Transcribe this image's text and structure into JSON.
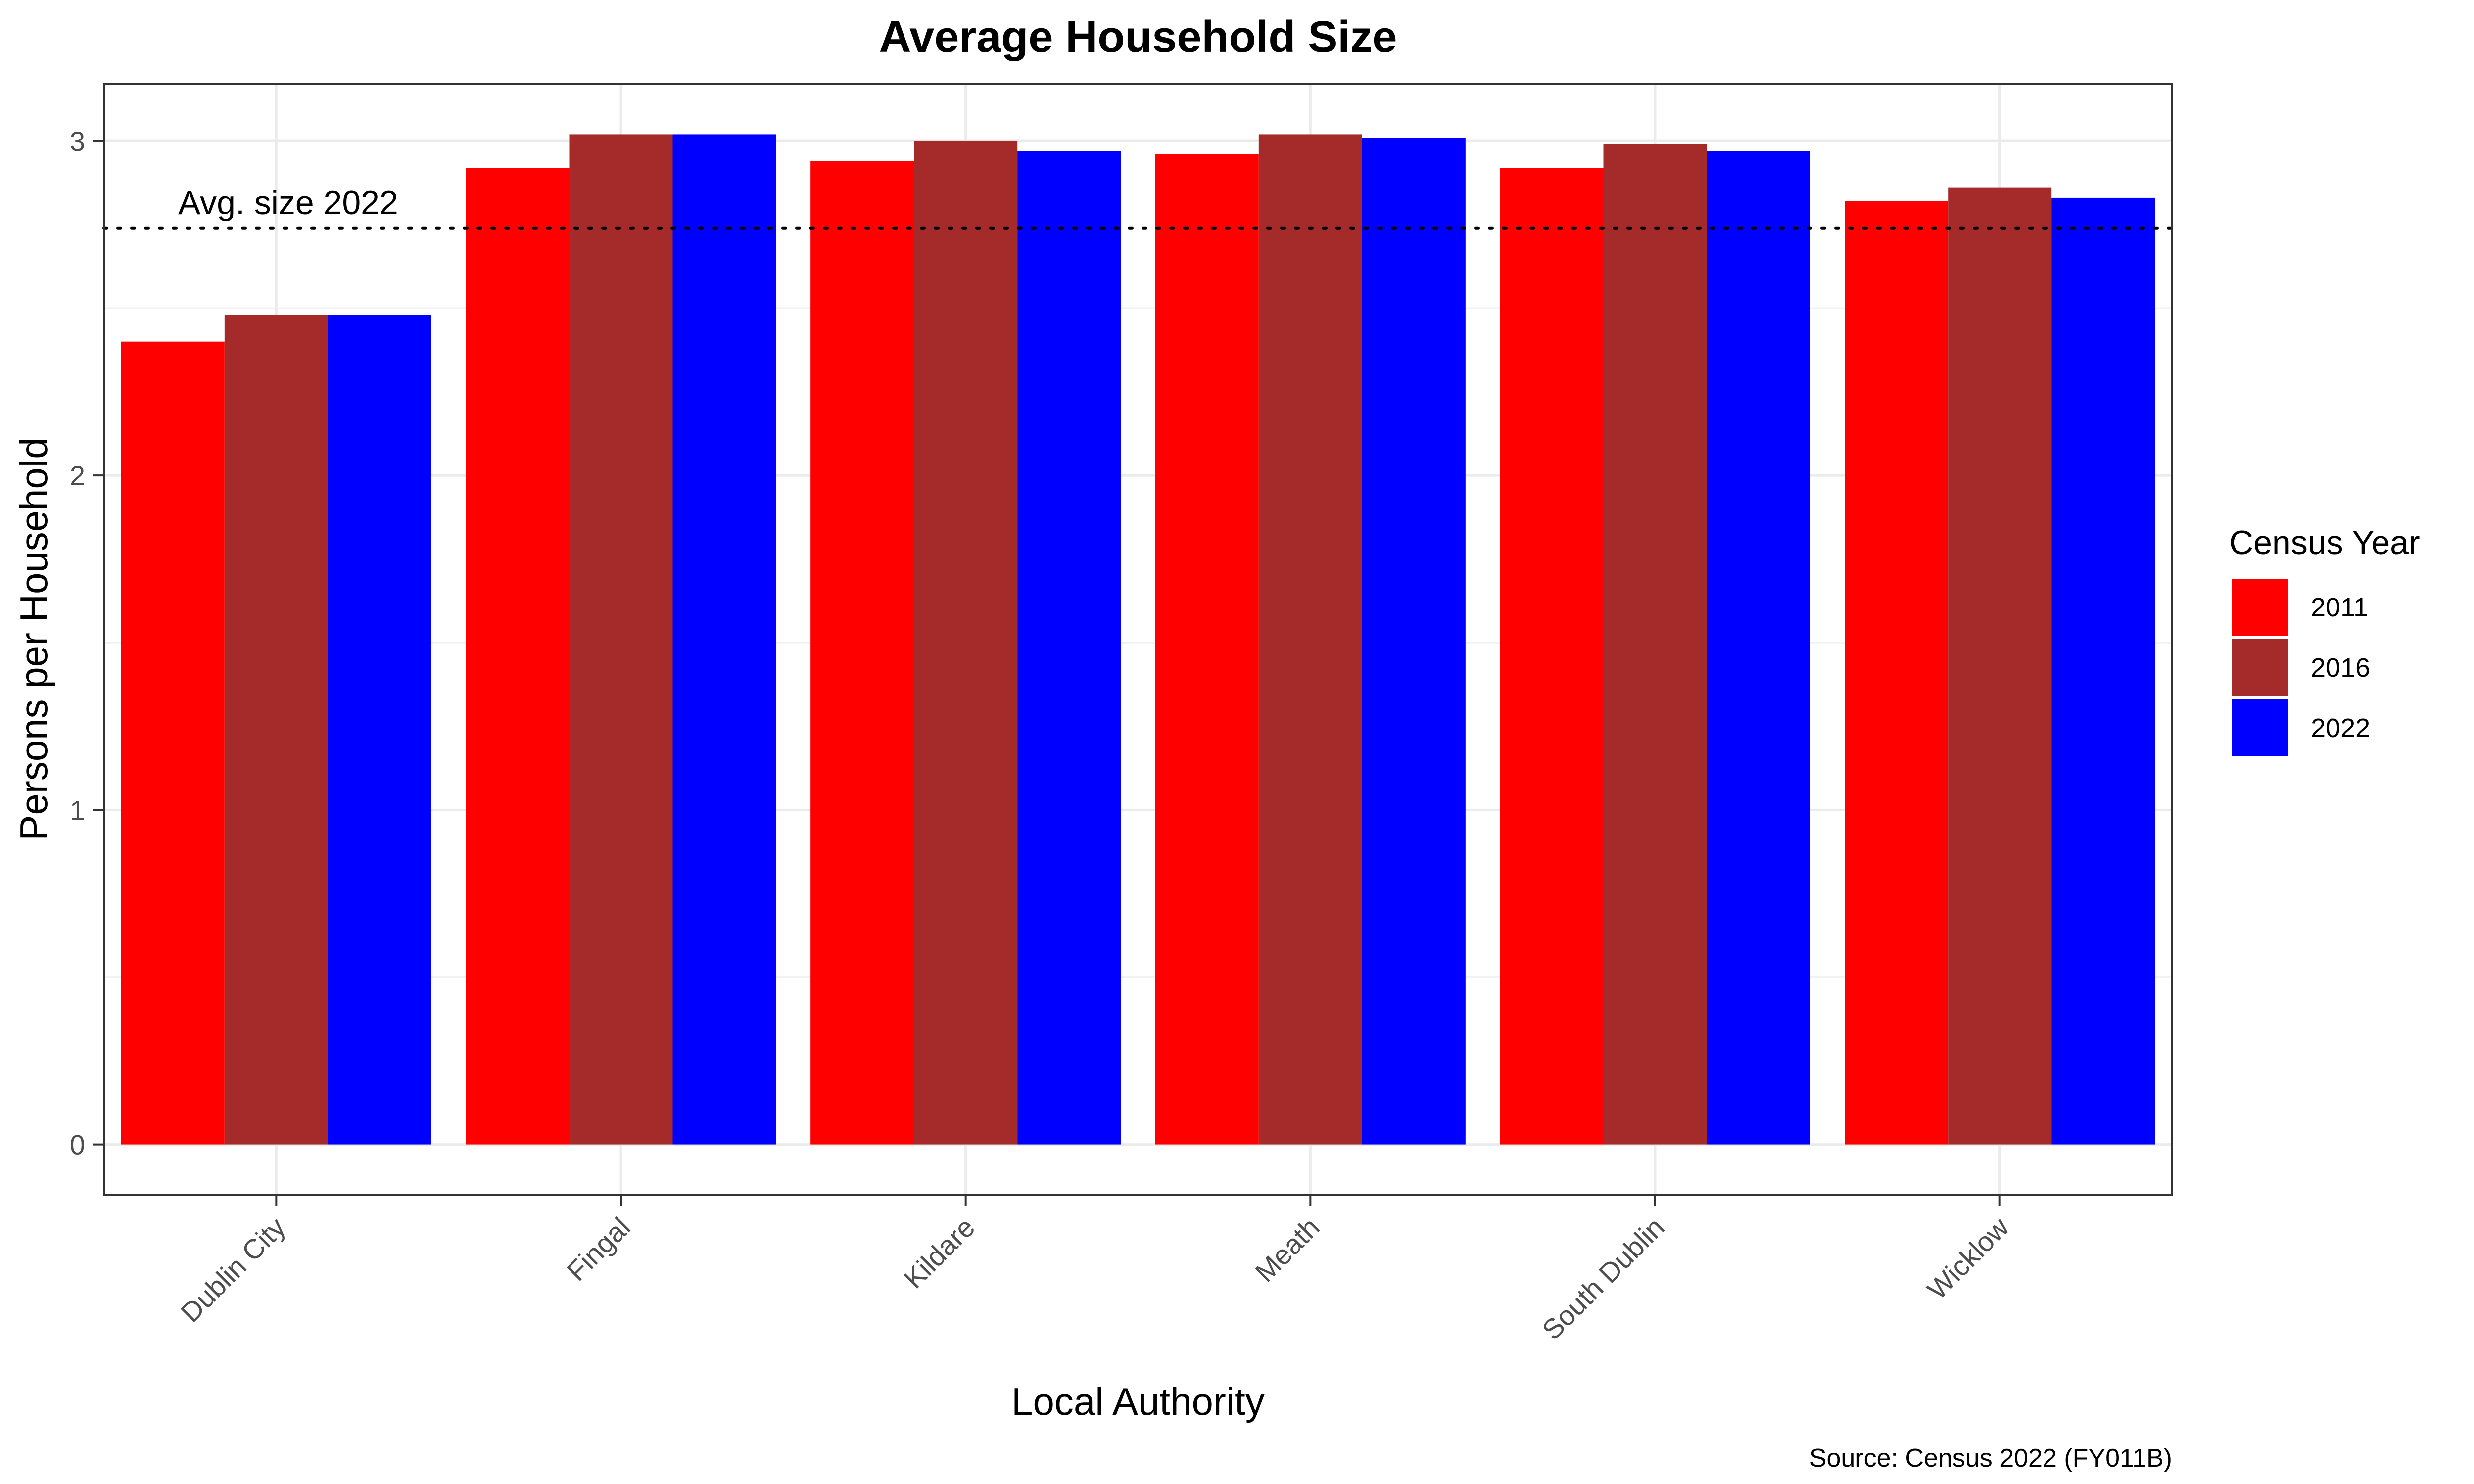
{
  "chart_data": {
    "type": "bar",
    "title": "Average Household Size",
    "xlabel": "Local Authority",
    "ylabel": "Persons per Household",
    "caption": "Source: Census 2022 (FY011B)",
    "legend_title": "Census Year",
    "legend_position": "right",
    "grid": true,
    "ylim": [
      -0.15,
      3.17
    ],
    "yticks": [
      0,
      1,
      2,
      3
    ],
    "categories": [
      "Dublin City",
      "Fingal",
      "Kildare",
      "Meath",
      "South Dublin",
      "Wicklow"
    ],
    "series": [
      {
        "name": "2011",
        "color": "#ff0000",
        "values": [
          2.4,
          2.92,
          2.94,
          2.96,
          2.92,
          2.82
        ]
      },
      {
        "name": "2016",
        "color": "#a52a2a",
        "values": [
          2.48,
          3.02,
          3.0,
          3.02,
          2.99,
          2.86
        ]
      },
      {
        "name": "2022",
        "color": "#0000ff",
        "values": [
          2.48,
          3.02,
          2.97,
          3.01,
          2.97,
          2.83
        ]
      }
    ],
    "reference_line": {
      "label": "Avg. size 2022",
      "value": 2.74,
      "style": "dotted"
    }
  }
}
